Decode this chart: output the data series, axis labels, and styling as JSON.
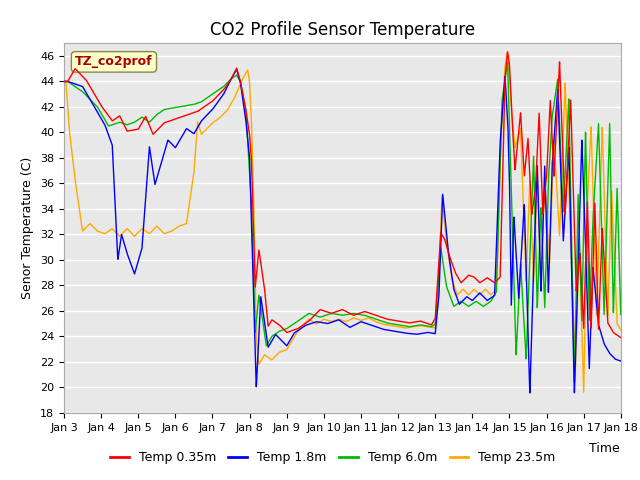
{
  "title": "CO2 Profile Sensor Temperature",
  "xlabel": "Time",
  "ylabel": "Senor Temperature (C)",
  "ylim": [
    18,
    47
  ],
  "yticks": [
    18,
    20,
    22,
    24,
    26,
    28,
    30,
    32,
    34,
    36,
    38,
    40,
    42,
    44,
    46
  ],
  "xlim_days": [
    3,
    18
  ],
  "xtick_positions": [
    3,
    4,
    5,
    6,
    7,
    8,
    9,
    10,
    11,
    12,
    13,
    14,
    15,
    16,
    17,
    18
  ],
  "xtick_labels": [
    "Jan 3",
    "Jan 4",
    "Jan 5",
    "Jan 6",
    "Jan 7",
    "Jan 8",
    "Jan 9",
    "Jan 10",
    "Jan 11",
    "Jan 12",
    "Jan 13",
    "Jan 14",
    "Jan 15",
    "Jan 16",
    "Jan 17",
    "Jan 18"
  ],
  "colors": {
    "red": "#ff0000",
    "blue": "#0000ff",
    "green": "#00bb00",
    "orange": "#ffaa00"
  },
  "legend_labels": [
    "Temp 0.35m",
    "Temp 1.8m",
    "Temp 6.0m",
    "Temp 23.5m"
  ],
  "annotation_text": "TZ_co2prof",
  "annotation_color": "#aa0000",
  "annotation_bgcolor": "#ffffcc",
  "annotation_edgecolor": "#888844",
  "bg_color": "#e8e8e8",
  "grid_color": "#ffffff",
  "title_fontsize": 12,
  "label_fontsize": 9,
  "tick_fontsize": 8,
  "legend_fontsize": 9
}
